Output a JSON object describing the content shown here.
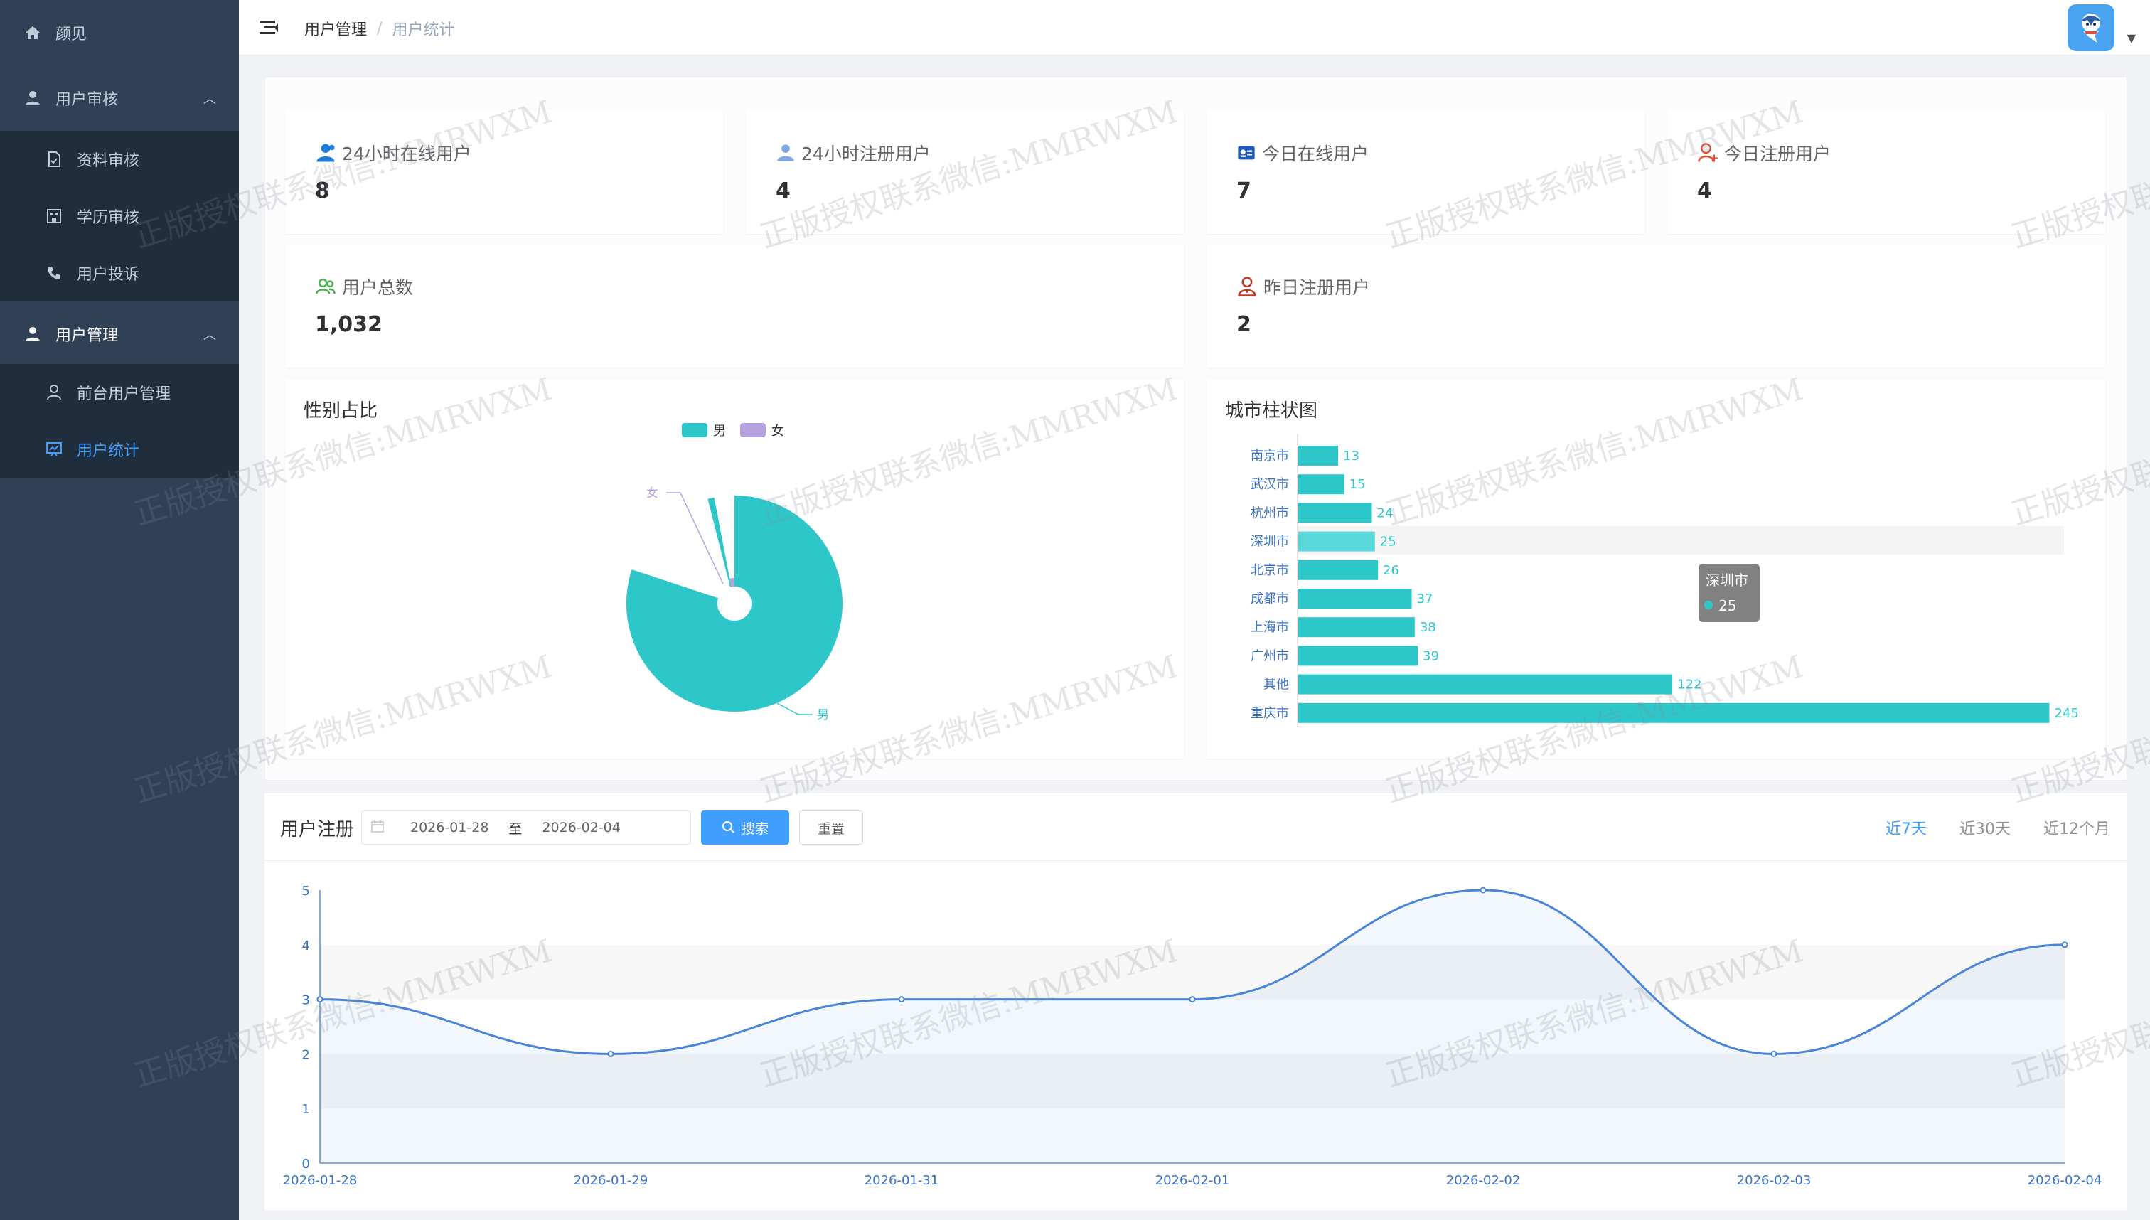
{
  "sidebar": {
    "items": [
      {
        "label": "颜见",
        "icon": "home-icon"
      },
      {
        "label": "用户审核",
        "icon": "user-icon",
        "expanded": true
      },
      {
        "label": "资料审核",
        "icon": "document-check-icon"
      },
      {
        "label": "学历审核",
        "icon": "building-icon"
      },
      {
        "label": "用户投诉",
        "icon": "phone-icon"
      },
      {
        "label": "用户管理",
        "icon": "user-icon",
        "expanded": true
      },
      {
        "label": "前台用户管理",
        "icon": "person-outline-icon"
      },
      {
        "label": "用户统计",
        "icon": "chart-screen-icon",
        "active": true
      }
    ]
  },
  "header": {
    "breadcrumb": [
      "用户管理",
      "用户统计"
    ],
    "avatar_icon": "snow-mascot-icon"
  },
  "stats": [
    {
      "title": "24小时在线用户",
      "value": "8",
      "icon": "user-online-icon",
      "color": "#1f7ad9"
    },
    {
      "title": "24小时注册用户",
      "value": "4",
      "icon": "user-icon",
      "color": "#7fa8e0"
    },
    {
      "title": "今日在线用户",
      "value": "7",
      "icon": "id-card-icon",
      "color": "#1e5bb8"
    },
    {
      "title": "今日注册用户",
      "value": "4",
      "icon": "user-add-icon",
      "color": "#e0533a"
    },
    {
      "title": "用户总数",
      "value": "1,032",
      "icon": "users-icon",
      "color": "#4caf50"
    },
    {
      "title": "昨日注册用户",
      "value": "2",
      "icon": "user-warning-icon",
      "color": "#c0392b"
    }
  ],
  "gender_chart": {
    "title": "性别占比",
    "legend": [
      "男",
      "女"
    ],
    "colors": [
      "#2ec7c9",
      "#b6a2de"
    ]
  },
  "city_chart": {
    "title": "城市柱状图",
    "tooltip": {
      "label": "深圳市",
      "value": "25"
    }
  },
  "registration": {
    "title": "用户注册",
    "start_date": "2026-01-28",
    "range_separator": "至",
    "end_date": "2026-02-04",
    "search_label": "搜索",
    "reset_label": "重置",
    "periods": [
      "近7天",
      "近30天",
      "近12个月"
    ],
    "active_period": "近7天"
  },
  "watermark": "正版授权联系微信:MMRWXM",
  "chart_data": [
    {
      "type": "pie",
      "title": "性别占比",
      "categories": [
        "男",
        "女"
      ],
      "values": [
        97,
        3
      ]
    },
    {
      "type": "bar",
      "orientation": "horizontal",
      "title": "城市柱状图",
      "categories": [
        "南京市",
        "武汉市",
        "杭州市",
        "深圳市",
        "北京市",
        "成都市",
        "上海市",
        "广州市",
        "其他",
        "重庆市"
      ],
      "values": [
        13,
        15,
        24,
        25,
        26,
        37,
        38,
        39,
        122,
        245
      ],
      "xlim": [
        0,
        250
      ],
      "highlighted": "深圳市"
    },
    {
      "type": "line",
      "title": "用户注册",
      "x": [
        "2026-01-28",
        "2026-01-29",
        "2026-01-31",
        "2026-02-01",
        "2026-02-02",
        "2026-02-03",
        "2026-02-04"
      ],
      "values": [
        3,
        2,
        3,
        3,
        5,
        2,
        4
      ],
      "ylim": [
        0,
        5
      ],
      "yticks": [
        0,
        1,
        2,
        3,
        4,
        5
      ],
      "smooth": true,
      "area": true
    }
  ]
}
